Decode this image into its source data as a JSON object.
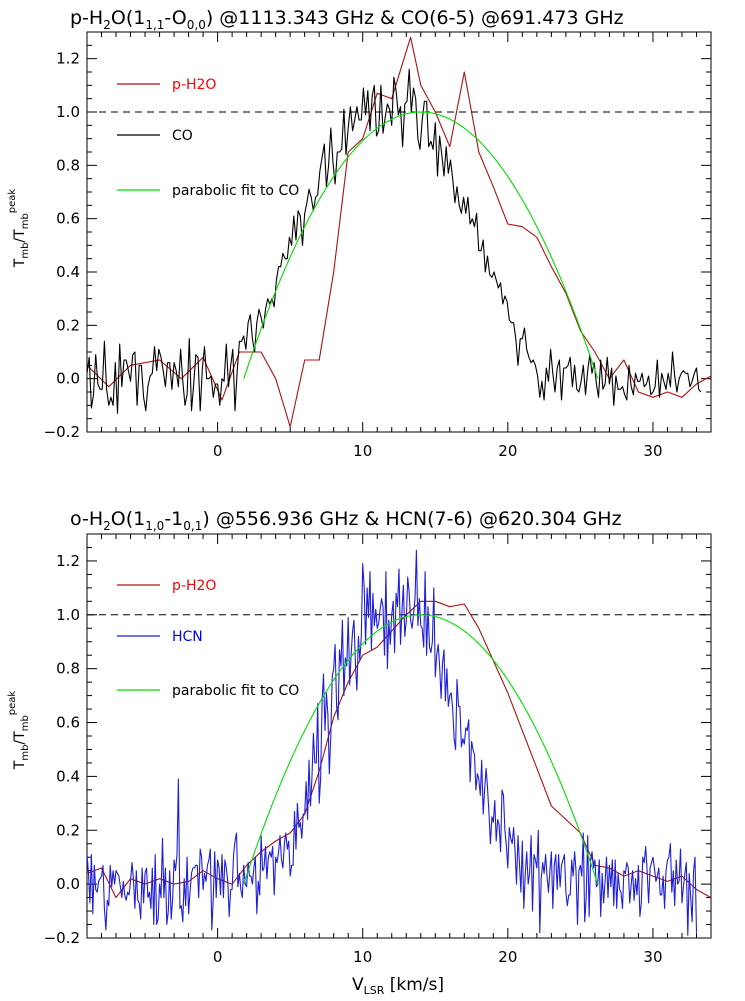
{
  "colors": {
    "red": "#b01010",
    "black": "#000000",
    "green": "#00e000",
    "blue": "#1e1edc",
    "legend_red_text": "#ff0000",
    "legend_blue_text": "#0000ff"
  },
  "ylabel": {
    "main": "T",
    "sub1": "mb",
    "slash": "/T",
    "sub2": "mb",
    "sup": "peak"
  },
  "xlabel": {
    "main": "V",
    "sub": "LSR",
    "rest": " [km/s]"
  },
  "chart_data": [
    {
      "type": "line",
      "title": {
        "prefix": "p-H",
        "sub_a": "2",
        "mid_a": "O(1",
        "sub_b": "1,1",
        "mid_b": "-O",
        "sub_c": "0,0",
        "suffix": ") @1113.343 GHz & CO(6-5) @691.473 GHz"
      },
      "xlim": [
        -9,
        34
      ],
      "ylim": [
        -0.2,
        1.3
      ],
      "x_ticks": [
        0,
        10,
        20,
        30
      ],
      "y_ticks": [
        -0.2,
        0.0,
        0.2,
        0.4,
        0.6,
        0.8,
        1.0,
        1.2
      ],
      "reference_line": 1.0,
      "legend": [
        {
          "label": "p-H2O",
          "color": "red"
        },
        {
          "label": "CO",
          "color": "black"
        },
        {
          "label": "parabolic fit to CO",
          "color": "green"
        }
      ],
      "series": [
        {
          "name": "p-H2O",
          "color": "red",
          "x": [
            -9,
            -7.5,
            -6,
            -4,
            -2.5,
            -1,
            0.3,
            1.5,
            3,
            4,
            5,
            6,
            7,
            8,
            9,
            10,
            11,
            12,
            13.3,
            14,
            15,
            16,
            17,
            18,
            19,
            20,
            21,
            22,
            23,
            24,
            25,
            26,
            27,
            28,
            29,
            30,
            31,
            32,
            33,
            34
          ],
          "y": [
            0.05,
            -0.03,
            0.05,
            0.07,
            0.0,
            0.08,
            -0.08,
            0.1,
            0.1,
            0.0,
            -0.18,
            0.07,
            0.07,
            0.4,
            0.85,
            0.9,
            1.07,
            1.05,
            1.28,
            1.1,
            1.0,
            0.87,
            1.15,
            0.85,
            0.72,
            0.58,
            0.57,
            0.53,
            0.42,
            0.32,
            0.18,
            0.1,
            0.0,
            0.07,
            -0.05,
            -0.07,
            -0.05,
            -0.07,
            -0.02,
            0.01
          ]
        },
        {
          "name": "CO",
          "color": "black",
          "x_start": -9,
          "x_step": 0.15,
          "y": [
            0.02,
            0.08,
            -0.11,
            -0.06,
            0.09,
            -0.02,
            -0.04,
            -0.04,
            0.14,
            -0.04,
            -0.1,
            -0.07,
            -0.1,
            0.06,
            -0.13,
            0.13,
            -0.03,
            0.07,
            0.07,
            0.03,
            -0.01,
            0.09,
            0.1,
            -0.1,
            0.05,
            0.05,
            -0.07,
            -0.12,
            -0.03,
            0.01,
            0.02,
            0.12,
            0.03,
            0.11,
            0.08,
            0.03,
            -0.03,
            0.06,
            0.06,
            -0.04,
            0.06,
            0.03,
            -0.03,
            0.11,
            -0.01,
            -0.1,
            -0.06,
            0.15,
            -0.12,
            -0.02,
            0.09,
            0.08,
            -0.12,
            0.04,
            0.12,
            0.0,
            0.0,
            0.01,
            -0.07,
            -0.02,
            -0.02,
            -0.1,
            0.0,
            -0.01,
            0.13,
            -0.03,
            0.05,
            0.11,
            -0.12,
            0.03,
            0.14,
            0.14,
            0.16,
            0.11,
            0.21,
            0.24,
            0.15,
            0.1,
            0.21,
            0.26,
            0.23,
            0.19,
            0.26,
            0.3,
            0.28,
            0.3,
            0.27,
            0.37,
            0.42,
            0.42,
            0.47,
            0.45,
            0.45,
            0.53,
            0.5,
            0.61,
            0.52,
            0.63,
            0.61,
            0.5,
            0.62,
            0.66,
            0.71,
            0.68,
            0.63,
            0.68,
            0.69,
            0.78,
            0.83,
            0.88,
            0.72,
            0.8,
            0.94,
            0.81,
            0.73,
            0.85,
            0.85,
            0.86,
            1.01,
            0.84,
            0.94,
            1.02,
            0.93,
            0.97,
            1.02,
            0.97,
            0.97,
            1.09,
            0.99,
            1.08,
            0.93,
            1.06,
            1.1,
            0.91,
            0.93,
            1.1,
            0.92,
            0.98,
            1.03,
            1.01,
            0.95,
            1.13,
            1.08,
            0.99,
            1.02,
            0.87,
            1.03,
            1.04,
            1.16,
            1.0,
            1.09,
            1.05,
            0.9,
            0.86,
            0.97,
            1.04,
            1.04,
            0.87,
            0.89,
            0.86,
            0.96,
            0.76,
            0.91,
            0.84,
            0.76,
            0.87,
            0.77,
            0.82,
            0.75,
            0.66,
            0.72,
            0.65,
            0.62,
            0.68,
            0.62,
            0.68,
            0.58,
            0.6,
            0.57,
            0.62,
            0.48,
            0.48,
            0.52,
            0.4,
            0.46,
            0.39,
            0.38,
            0.4,
            0.37,
            0.34,
            0.36,
            0.28,
            0.31,
            0.29,
            0.22,
            0.21,
            0.21,
            0.15,
            0.05,
            0.15,
            0.15,
            0.19,
            0.11,
            0.08,
            0.06,
            0.07,
            0.05,
            0.01,
            -0.07,
            -0.01,
            -0.08,
            0.04,
            -0.01,
            0.11,
            0.02,
            -0.05,
            0.04,
            0.07,
            -0.08,
            0.04,
            0.04,
            0.05,
            0.08,
            -0.03,
            0.05,
            -0.04,
            -0.05,
            -0.01,
            0.05,
            -0.06,
            0.03,
            0.09,
            0.02,
            0.06,
            -0.02,
            -0.07,
            0.07,
            -0.04,
            -0.02,
            0.08,
            -0.02,
            0.04,
            -0.1,
            0.01,
            -0.04,
            -0.04,
            -0.03,
            -0.06,
            -0.08,
            0.05,
            -0.03,
            -0.06,
            0.02,
            -0.01,
            -0.01,
            0.02,
            -0.03,
            -0.02,
            0.01,
            -0.06,
            -0.05,
            -0.03,
            0.07,
            -0.07,
            0.02,
            -0.01,
            -0.04,
            0.02,
            -0.03,
            0.1,
            0.01,
            -0.05,
            0.0,
            0.02,
            0.03,
            0.02,
            0.02,
            -0.03,
            -0.01,
            0.02,
            0.04,
            -0.04,
            -0.05
          ]
        },
        {
          "name": "parabolic fit to CO",
          "color": "green",
          "type": "parabola",
          "center": 14.0,
          "peak": 1.0,
          "x_range": [
            1.8,
            26.2
          ]
        }
      ]
    },
    {
      "type": "line",
      "title": {
        "prefix": "o-H",
        "sub_a": "2",
        "mid_a": "O(1",
        "sub_b": "1,0",
        "mid_b": "-1",
        "sub_c": "0,1",
        "suffix": ") @556.936 GHz & HCN(7-6) @620.304 GHz"
      },
      "xlim": [
        -9,
        34
      ],
      "ylim": [
        -0.2,
        1.3
      ],
      "x_ticks": [
        0,
        10,
        20,
        30
      ],
      "y_ticks": [
        -0.2,
        0.0,
        0.2,
        0.4,
        0.6,
        0.8,
        1.0,
        1.2
      ],
      "reference_line": 1.0,
      "legend": [
        {
          "label": "p-H2O",
          "color": "red"
        },
        {
          "label": "HCN",
          "color": "blue"
        },
        {
          "label": "parabolic fit to CO",
          "color": "green"
        }
      ],
      "series": [
        {
          "name": "p-H2O",
          "color": "red",
          "x": [
            -9,
            -8,
            -7,
            -6,
            -5,
            -4,
            -3,
            -2,
            -1,
            0,
            1,
            2,
            3,
            4,
            5,
            6,
            7,
            8,
            9,
            10,
            11,
            12,
            13,
            14,
            15,
            16,
            17,
            18,
            19,
            20,
            21,
            22,
            23,
            24,
            25,
            26,
            27,
            28,
            29,
            30,
            31,
            32,
            33,
            34
          ],
          "y": [
            0.04,
            0.06,
            -0.05,
            0.02,
            0.0,
            0.02,
            0.0,
            0.01,
            0.05,
            0.02,
            0.0,
            0.07,
            0.12,
            0.16,
            0.19,
            0.26,
            0.42,
            0.62,
            0.75,
            0.85,
            0.88,
            0.94,
            1.0,
            1.05,
            1.05,
            1.03,
            1.04,
            0.95,
            0.83,
            0.71,
            0.57,
            0.43,
            0.29,
            0.24,
            0.19,
            0.07,
            0.06,
            0.03,
            0.05,
            0.03,
            0.01,
            0.03,
            -0.02,
            -0.05
          ]
        },
        {
          "name": "HCN",
          "color": "blue",
          "x_start": -9,
          "x_step": 0.1,
          "y": [
            0.11,
            0.04,
            -0.07,
            0.11,
            -0.11,
            0.07,
            -0.02,
            -0.03,
            0.01,
            0.02,
            0.03,
            0.07,
            -0.09,
            -0.17,
            -0.06,
            -0.08,
            0.07,
            -0.01,
            0.05,
            -0.0,
            0.05,
            0.04,
            0.03,
            -0.01,
            -0.05,
            0.01,
            -0.04,
            -0.06,
            -0.03,
            -0.04,
            0.01,
            0.08,
            0.02,
            -0.09,
            0.05,
            -0.06,
            -0.07,
            -0.13,
            0.06,
            -0.07,
            0.04,
            0.06,
            -0.05,
            -0.03,
            -0.09,
            0.06,
            -0.15,
            0.11,
            -0.15,
            -0.13,
            0.0,
            -0.05,
            0.17,
            -0.05,
            0.06,
            -0.15,
            -0.1,
            0.05,
            -0.13,
            -0.06,
            0.09,
            0.05,
            0.11,
            0.39,
            -0.09,
            -0.08,
            -0.14,
            0.02,
            -0.08,
            0.1,
            -0.11,
            -0.03,
            0.04,
            0.06,
            0.06,
            0.07,
            0.07,
            -0.05,
            0.13,
            0.1,
            -0.02,
            0.04,
            0.01,
            0.07,
            0.09,
            0.13,
            -0.17,
            -0.05,
            0.12,
            -0.05,
            0.09,
            0.06,
            -0.04,
            0.11,
            -0.05,
            0.09,
            0.06,
            0.01,
            -0.12,
            -0.02,
            -0.02,
            0.11,
            0.16,
            0.19,
            -0.01,
            0.04,
            -0.02,
            -0.05,
            0.07,
            0.0,
            -0.01,
            0.08,
            0.03,
            0.03,
            -0.0,
            0.06,
            0.1,
            -0.11,
            0.01,
            -0.04,
            0.18,
            0.05,
            0.06,
            0.14,
            0.02,
            0.1,
            0.12,
            0.1,
            0.14,
            -0.04,
            0.1,
            0.08,
            0.12,
            0.18,
            0.09,
            0.06,
            0.15,
            0.19,
            0.13,
            0.16,
            0.03,
            0.07,
            0.07,
            0.27,
            0.13,
            0.3,
            0.21,
            0.23,
            0.17,
            0.26,
            0.26,
            0.38,
            0.24,
            0.46,
            0.29,
            0.39,
            0.56,
            0.45,
            0.45,
            0.67,
            0.3,
            0.39,
            0.68,
            0.78,
            0.57,
            0.71,
            0.63,
            0.41,
            0.55,
            0.77,
            0.8,
            0.89,
            0.66,
            0.61,
            0.87,
            0.81,
            0.98,
            0.7,
            0.84,
            0.81,
            0.99,
            0.74,
            0.85,
            0.94,
            0.98,
            0.81,
            0.72,
            0.92,
            0.83,
            0.92,
            1.19,
            1.1,
            0.89,
            1.1,
            0.99,
            1.16,
            0.87,
            1.08,
            0.96,
            1.02,
            0.95,
            0.97,
            1.02,
            1.06,
            1.03,
            0.85,
            1.16,
            0.8,
            0.98,
            0.89,
            1.0,
            1.05,
            0.86,
            1.08,
            1.03,
            1.17,
            0.89,
            1.01,
            1.11,
            0.92,
            0.98,
            1.14,
            1.08,
            0.98,
            0.95,
            1.0,
            1.06,
            1.24,
            0.96,
            1.06,
            0.96,
            0.95,
            0.88,
            1.16,
            0.85,
            1.03,
            0.88,
            0.86,
            0.9,
            1.1,
            0.77,
            0.85,
            0.89,
            0.81,
            0.69,
            0.82,
            0.87,
            0.68,
            0.8,
            0.66,
            0.7,
            0.71,
            0.65,
            0.54,
            0.5,
            0.76,
            0.66,
            0.66,
            0.51,
            0.54,
            0.52,
            0.58,
            0.57,
            0.61,
            0.38,
            0.53,
            0.5,
            0.48,
            0.35,
            0.41,
            0.39,
            0.33,
            0.46,
            0.26,
            0.35,
            0.43,
            0.36,
            0.26,
            0.15,
            0.25,
            0.23,
            0.31,
            0.16,
            0.24,
            0.22,
            0.12,
            0.35,
            0.33,
            0.2,
            0.14,
            0.06,
            0.21,
            0.17,
            0.15,
            0.21,
            0.12,
            0.0,
            0.18,
            0.08,
            -0.03,
            0.16,
            -0.09,
            0.04,
            0.12,
            0.0,
            0.04,
            0.18,
            -0.1,
            0.11,
            0.09,
            0.06,
            0.2,
            -0.18,
            0.02,
            0.08,
            0.04,
            0.11,
            0.03,
            -0.03,
            0.05,
            0.12,
            -0.09,
            0.07,
            0.11,
            -0.02,
            0.11,
            -0.01,
            0.07,
            0.09,
            0.11,
            -0.03,
            -0.08,
            -0.04,
            -0.04,
            0.09,
            0.03,
            0.12,
            0.05,
            -0.15,
            0.05,
            0.07,
            0.03,
            0.19,
            -0.14,
            -0.05,
            0.18,
            -0.12,
            0.09,
            0.12,
            0.06,
            0.09,
            -0.01,
            0.0,
            0.09,
            -0.12,
            0.04,
            -0.07,
            0.01,
            0.1,
            -0.05,
            0.07,
            -0.01,
            0.09,
            -0.08,
            0.09,
            -0.09,
            0.04,
            -0.02,
            -0.03,
            -0.09,
            0.05,
            0.04,
            0.08,
            0.06,
            -0.07,
            -0.0,
            0.05,
            -0.06,
            0.02,
            -0.04,
            0.07,
            -0.12,
            -0.07,
            0.1,
            0.08,
            0.14,
            0.05,
            -0.07,
            0.06,
            0.08,
            0.1,
            0.06,
            0.01,
            0.03,
            0.06,
            -0.04,
            -0.04,
            0.03,
            -0.09,
            0.05,
            0.09,
            0.1,
            0.15,
            -0.03,
            0.05,
            -0.08,
            0.09,
            -0.0,
            0.01,
            0.13,
            -0.07,
            -0.01,
            0.04,
            0.08,
            -0.19,
            0.04,
            -0.05,
            -0.14,
            0.05,
            0.1,
            -0.18
          ]
        },
        {
          "name": "parabolic fit to CO",
          "color": "green",
          "type": "parabola",
          "center": 14.0,
          "peak": 1.0,
          "x_range": [
            1.8,
            26.2
          ]
        }
      ]
    }
  ]
}
